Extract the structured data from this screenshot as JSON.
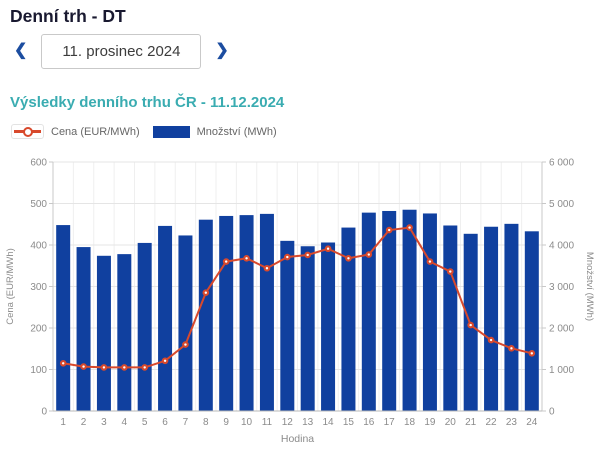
{
  "page": {
    "title": "Denní trh - DT"
  },
  "date_nav": {
    "prev_icon": "❮",
    "next_icon": "❯",
    "value": "11. prosinec 2024"
  },
  "section": {
    "heading": "Výsledky denního trhu ČR - 11.12.2024"
  },
  "legend": {
    "price_label": "Cena (EUR/MWh)",
    "volume_label": "Množství (MWh)"
  },
  "colors": {
    "bar": "#10409f",
    "line": "#d8492c",
    "teal_heading": "#3aacb1",
    "nav_blue": "#1c4da0",
    "title_dark": "#191930",
    "grid": "#e5e5e5",
    "grid_vertical": "#efefef",
    "axis": "#c8c8c8",
    "axis_bottom": "#b8b8b8",
    "tick_text": "#8b8b8b"
  },
  "chart_data": {
    "type": "bar",
    "title": "Výsledky denního trhu ČR - 11.12.2024",
    "xlabel": "Hodina",
    "x": [
      1,
      2,
      3,
      4,
      5,
      6,
      7,
      8,
      9,
      10,
      11,
      12,
      13,
      14,
      15,
      16,
      17,
      18,
      19,
      20,
      21,
      22,
      23,
      24
    ],
    "series": [
      {
        "name": "Cena (EUR/MWh)",
        "type": "line",
        "axis": "left",
        "values": [
          115,
          107,
          105,
          105,
          105,
          121,
          160,
          285,
          360,
          368,
          344,
          371,
          376,
          391,
          368,
          377,
          436,
          442,
          360,
          336,
          207,
          171,
          151,
          139
        ]
      },
      {
        "name": "Množství (MWh)",
        "type": "bar",
        "axis": "right",
        "values": [
          4480,
          3950,
          3740,
          3780,
          4050,
          4460,
          4230,
          4610,
          4700,
          4720,
          4750,
          4100,
          3970,
          4060,
          4420,
          4780,
          4820,
          4850,
          4760,
          4470,
          4270,
          4440,
          4510,
          4330
        ]
      }
    ],
    "left_axis": {
      "label": "Cena (EUR/MWh)",
      "min": 0,
      "max": 600,
      "step": 100
    },
    "right_axis": {
      "label": "Množství (MWh)",
      "min": 0,
      "max": 6000,
      "step": 1000
    },
    "grid": true,
    "legend_position": "top-left"
  }
}
